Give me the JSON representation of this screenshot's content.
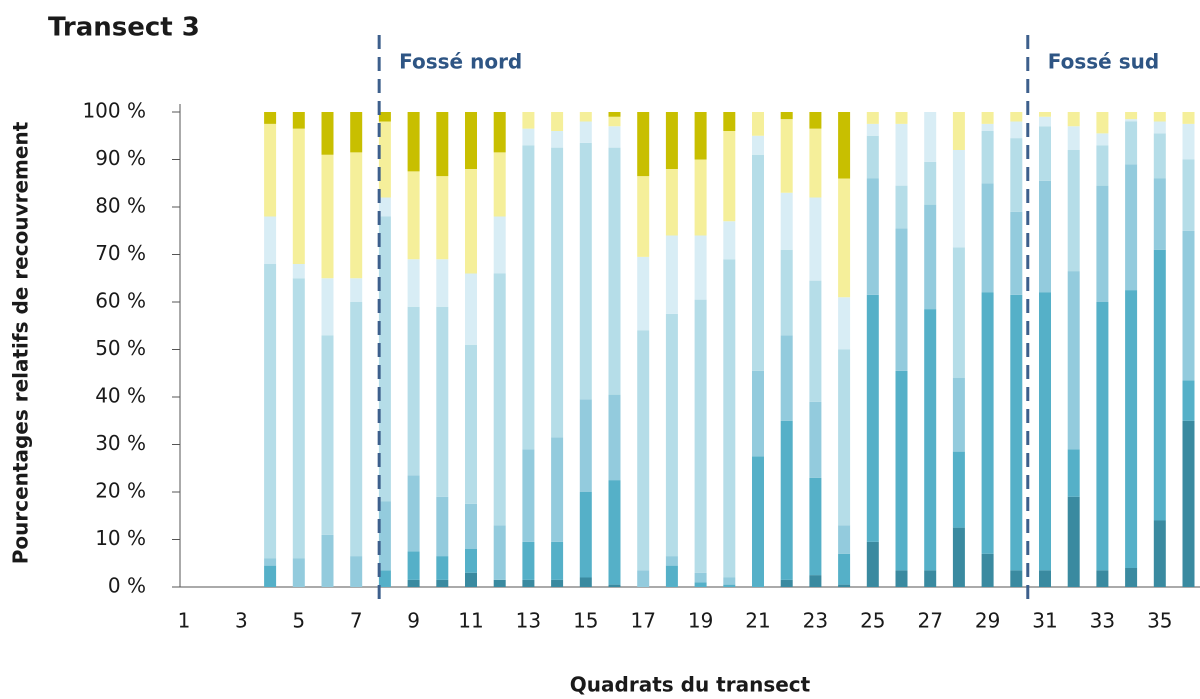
{
  "chart_data": {
    "type": "stacked_bar",
    "title": "Transect 3",
    "x_label": "Quadrats du transect",
    "y_label": "Pourcentages relatifs de recouvrement",
    "categories": [
      "1",
      null,
      "3",
      null,
      "5",
      null,
      "7",
      null,
      "9",
      null,
      "11",
      null,
      "13",
      null,
      "15",
      null,
      "17",
      null,
      "19",
      null,
      "21",
      null,
      "23",
      null,
      "25",
      null,
      "27",
      null,
      "29",
      null,
      "31",
      null,
      "33",
      null,
      "35",
      null
    ],
    "series": [
      {
        "color": "#3a8aa0",
        "values": [
          0,
          0,
          0,
          0,
          0,
          0,
          0,
          0,
          1.5,
          1.5,
          3,
          1.5,
          1.5,
          1.5,
          2,
          0.5,
          0,
          0,
          0,
          0,
          0,
          1.5,
          2.5,
          0.5,
          9.5,
          3.5,
          3.5,
          12.5,
          7,
          3.5,
          3.5,
          19,
          3.5,
          4,
          14,
          35
        ]
      },
      {
        "color": "#55b0c8",
        "values": [
          0,
          0,
          0,
          4.5,
          0,
          0,
          0,
          3.5,
          6,
          5,
          5,
          0,
          8,
          8,
          18,
          22,
          0,
          4.5,
          1,
          0.5,
          27.5,
          33.5,
          20.5,
          6.5,
          52,
          42,
          55,
          16,
          55,
          58,
          58.5,
          10,
          56.5,
          58.5,
          57,
          8.5
        ]
      },
      {
        "color": "#93cbdd",
        "values": [
          0,
          0,
          0,
          1.5,
          6,
          11,
          6.5,
          14.5,
          16,
          12.5,
          9.5,
          11.5,
          19.5,
          22,
          19.5,
          18,
          3.5,
          2,
          2,
          1.5,
          18,
          18,
          16,
          6,
          24.5,
          30,
          22,
          15.5,
          23,
          17.5,
          23.5,
          37.5,
          24.5,
          26.5,
          15,
          31.5
        ]
      },
      {
        "color": "#b5dde8",
        "values": [
          0,
          0,
          0,
          62,
          59,
          42,
          53.5,
          60,
          35.5,
          40,
          33.5,
          53,
          64,
          61,
          54,
          52,
          50.5,
          51,
          57.5,
          67,
          45.5,
          18,
          25.5,
          37,
          9,
          9,
          9,
          27.5,
          11,
          15.5,
          11.5,
          25.5,
          8.5,
          9,
          9.5,
          15
        ]
      },
      {
        "color": "#d8edf5",
        "values": [
          0,
          0,
          0,
          10,
          3,
          12,
          5,
          4,
          10,
          10,
          15,
          12,
          3.5,
          3.5,
          4.5,
          4.5,
          15.5,
          16.5,
          13.5,
          8,
          4,
          12,
          17.5,
          11,
          2.5,
          13,
          10.5,
          20.5,
          1.5,
          3.5,
          2,
          5,
          2.5,
          0.5,
          2.5,
          7.5
        ]
      },
      {
        "color": "#f5ef9a",
        "values": [
          0,
          0,
          0,
          19.5,
          28.5,
          26,
          26.5,
          16,
          18.5,
          17.5,
          22,
          13.5,
          3.5,
          4,
          2,
          2,
          17,
          14,
          16,
          19,
          5,
          15.5,
          14.5,
          25,
          2.5,
          2.5,
          0,
          8,
          2.5,
          2,
          1,
          3,
          4.5,
          1.5,
          2,
          2.5
        ]
      },
      {
        "color": "#c8bf00",
        "values": [
          0,
          0,
          0,
          2.5,
          3.5,
          9,
          8.5,
          2,
          12.5,
          13.5,
          12,
          8.5,
          0,
          0,
          0,
          1,
          13.5,
          12,
          10,
          4,
          0,
          1.5,
          3.5,
          14,
          0,
          0,
          0,
          0,
          0,
          0,
          0,
          0,
          0,
          0,
          0,
          0
        ]
      }
    ],
    "ylim": [
      0,
      100
    ],
    "yticks": [
      {
        "value": 0,
        "label": "0 %"
      },
      {
        "value": 10,
        "label": "10 %"
      },
      {
        "value": 20,
        "label": "20 %"
      },
      {
        "value": 30,
        "label": "30 %"
      },
      {
        "value": 40,
        "label": "40 %"
      },
      {
        "value": 50,
        "label": "50 %"
      },
      {
        "value": 60,
        "label": "60 %"
      },
      {
        "value": 70,
        "label": "70 %"
      },
      {
        "value": 80,
        "label": "80 %"
      },
      {
        "value": 90,
        "label": "90 %"
      },
      {
        "value": 100,
        "label": "100 %"
      }
    ],
    "annotations": [
      {
        "text": "Fossé nord",
        "x": 7.8
      },
      {
        "text": "Fossé sud",
        "x": 30.4
      }
    ]
  }
}
